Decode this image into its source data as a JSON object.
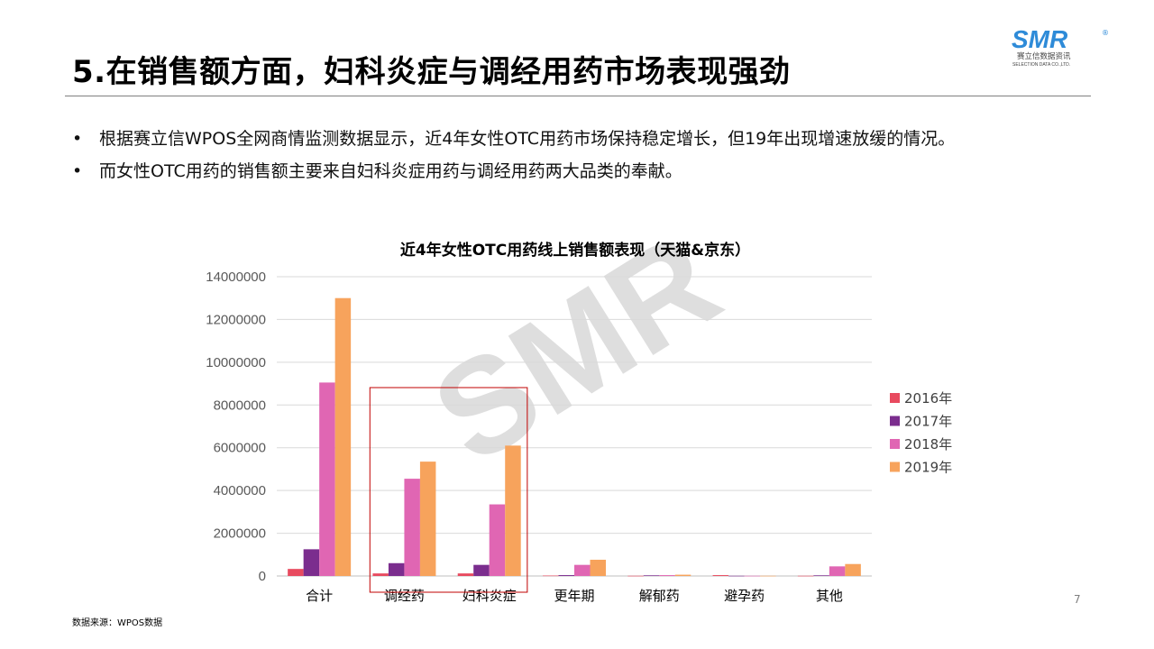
{
  "slide": {
    "title": "5.在销售额方面，妇科炎症与调经用药市场表现强劲",
    "bullets": [
      "根据赛立信WPOS全网商情监测数据显示，近4年女性OTC用药市场保持稳定增长，但19年出现增速放缓的情况。",
      "而女性OTC用药的销售额主要来自妇科炎症用药与调经用药两大品类的奉献。"
    ],
    "bullet_marker": "•",
    "source": "数据来源：WPOS数据",
    "page_number": "7"
  },
  "logo": {
    "brand": "SMR",
    "registered": "®",
    "company_cn": "赛立信数据资讯",
    "company_en": "SELECTION DATA CO.,LTD.",
    "color": "#2e8bd8"
  },
  "watermark": {
    "text": "SMR",
    "color": "#d9d9d9"
  },
  "chart_data": {
    "type": "bar",
    "title": "近4年女性OTC用药线上销售额表现（天猫&京东）",
    "categories": [
      "合计",
      "调经药",
      "妇科炎症",
      "更年期",
      "解郁药",
      "避孕药",
      "其他"
    ],
    "series": [
      {
        "name": "2016年",
        "color": "#e84a5f",
        "values": [
          330000,
          120000,
          120000,
          20000,
          10000,
          40000,
          10000
        ]
      },
      {
        "name": "2017年",
        "color": "#7b2d8e",
        "values": [
          1250000,
          600000,
          520000,
          40000,
          30000,
          10000,
          30000
        ]
      },
      {
        "name": "2018年",
        "color": "#e066b3",
        "values": [
          9050000,
          4550000,
          3350000,
          520000,
          40000,
          10000,
          450000
        ]
      },
      {
        "name": "2019年",
        "color": "#f7a35c",
        "values": [
          13000000,
          5350000,
          6100000,
          760000,
          60000,
          10000,
          560000
        ]
      }
    ],
    "yticks": [
      "0",
      "2000000",
      "4000000",
      "6000000",
      "8000000",
      "10000000",
      "12000000",
      "14000000"
    ],
    "ylim": [
      0,
      14000000
    ],
    "grid": true,
    "legend_position": "right",
    "highlight": {
      "categories": [
        "调经药",
        "妇科炎症"
      ],
      "color": "#c00000"
    }
  }
}
